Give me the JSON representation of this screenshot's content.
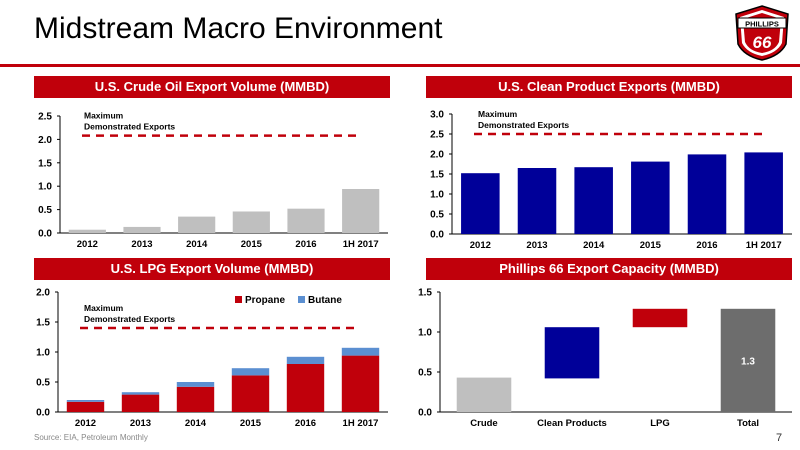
{
  "page": {
    "title": "Midstream Macro Environment",
    "source": "Source: EIA, Petroleum Monthly",
    "page_number": "7",
    "logo": {
      "top_text": "PHILLIPS",
      "number": "66"
    }
  },
  "colors": {
    "red": "#c0000b",
    "gray": "#bfbfbf",
    "navy": "#000099",
    "blue": "#5b8fd1",
    "dark_gray": "#6d6d6d",
    "dash": "#c0000b"
  },
  "chart_data": [
    {
      "id": "crude",
      "type": "bar",
      "title": "U.S. Crude Oil Export Volume (MMBD)",
      "categories": [
        "2012",
        "2013",
        "2014",
        "2015",
        "2016",
        "1H 2017"
      ],
      "values": [
        0.07,
        0.13,
        0.35,
        0.46,
        0.52,
        0.94
      ],
      "ylim": [
        0,
        2.5
      ],
      "yticks": [
        0.0,
        0.5,
        1.0,
        1.5,
        2.0,
        2.5
      ],
      "tick_format": "0.0",
      "reference_line": {
        "value": 2.08,
        "label_line1": "Maximum",
        "label_line2": "Demonstrated Exports"
      },
      "bar_color": "#bfbfbf"
    },
    {
      "id": "clean",
      "type": "bar",
      "title": "U.S. Clean Product Exports (MMBD)",
      "categories": [
        "2012",
        "2013",
        "2014",
        "2015",
        "2016",
        "1H 2017"
      ],
      "values": [
        1.52,
        1.65,
        1.67,
        1.81,
        1.99,
        2.04
      ],
      "ylim": [
        0,
        3.0
      ],
      "yticks": [
        0.0,
        0.5,
        1.0,
        1.5,
        2.0,
        2.5,
        3.0
      ],
      "tick_format": "0.0",
      "reference_line": {
        "value": 2.5,
        "label_line1": "Maximum",
        "label_line2": "Demonstrated Exports"
      },
      "bar_color": "#000099"
    },
    {
      "id": "lpg",
      "type": "bar",
      "stacked": true,
      "title": "U.S. LPG Export Volume (MMBD)",
      "categories": [
        "2012",
        "2013",
        "2014",
        "2015",
        "2016",
        "1H 2017"
      ],
      "series": [
        {
          "name": "Propane",
          "values": [
            0.17,
            0.29,
            0.42,
            0.61,
            0.8,
            0.94
          ],
          "color": "#c0000b"
        },
        {
          "name": "Butane",
          "values": [
            0.03,
            0.04,
            0.08,
            0.12,
            0.12,
            0.13
          ],
          "color": "#5b8fd1"
        }
      ],
      "ylim": [
        0,
        2.0
      ],
      "yticks": [
        0.0,
        0.5,
        1.0,
        1.5,
        2.0
      ],
      "tick_format": "0.0",
      "reference_line": {
        "value": 1.4,
        "label_line1": "Maximum",
        "label_line2": "Demonstrated Exports"
      },
      "legend_position": "top-right"
    },
    {
      "id": "p66",
      "type": "bar",
      "subtype": "waterfall",
      "title": "Phillips 66 Export Capacity (MMBD)",
      "categories": [
        "Crude",
        "Clean Products",
        "LPG",
        "Total"
      ],
      "segments": [
        {
          "start": 0.0,
          "end": 0.43,
          "color": "#bfbfbf"
        },
        {
          "start": 0.42,
          "end": 1.06,
          "color": "#000099"
        },
        {
          "start": 1.06,
          "end": 1.29,
          "color": "#c0000b"
        },
        {
          "start": 0.0,
          "end": 1.29,
          "color": "#6d6d6d",
          "label": "1.3"
        }
      ],
      "ylim": [
        0,
        1.5
      ],
      "yticks": [
        0.0,
        0.5,
        1.0,
        1.5
      ],
      "tick_format": "0.0"
    }
  ]
}
